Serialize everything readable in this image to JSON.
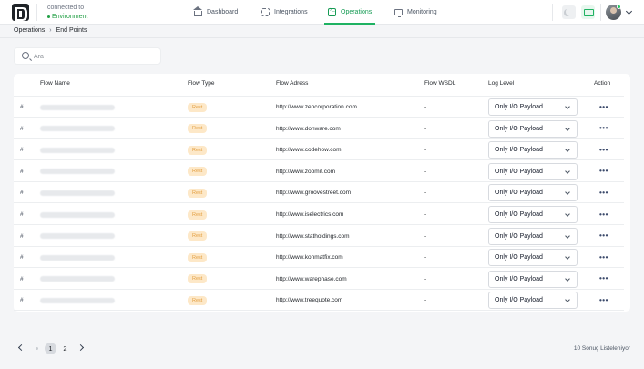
{
  "header": {
    "connection_label": "connected to",
    "environment": "Environment",
    "nav": [
      {
        "label": "Dashboard",
        "icon": "home-icon",
        "active": false
      },
      {
        "label": "Integrations",
        "icon": "integrations-icon",
        "active": false
      },
      {
        "label": "Operations",
        "icon": "terminal-icon",
        "active": true
      },
      {
        "label": "Monitoring",
        "icon": "monitor-icon",
        "active": false
      }
    ],
    "accent_color": "#1fb262"
  },
  "breadcrumb": [
    "Operations",
    "End Points"
  ],
  "search": {
    "placeholder": "Ara",
    "value": ""
  },
  "table": {
    "columns": [
      "Flow Name",
      "Flow Type",
      "Flow Adress",
      "Flow WSDL",
      "Log Level",
      "Action"
    ],
    "rows": [
      {
        "hash": "#",
        "type": "Rest",
        "address": "http://www.zencorporation.com",
        "wsdl": "-",
        "log_level": "Only I/O Payload"
      },
      {
        "hash": "#",
        "type": "Rest",
        "address": "http://www.donware.com",
        "wsdl": "-",
        "log_level": "Only I/O Payload"
      },
      {
        "hash": "#",
        "type": "Rest",
        "address": "http://www.codehow.com",
        "wsdl": "-",
        "log_level": "Only I/O Payload"
      },
      {
        "hash": "#",
        "type": "Rest",
        "address": "http://www.zoomit.com",
        "wsdl": "-",
        "log_level": "Only I/O Payload"
      },
      {
        "hash": "#",
        "type": "Rest",
        "address": "http://www.groovestreet.com",
        "wsdl": "-",
        "log_level": "Only I/O Payload"
      },
      {
        "hash": "#",
        "type": "Rest",
        "address": "http://www.iselectrics.com",
        "wsdl": "-",
        "log_level": "Only I/O Payload"
      },
      {
        "hash": "#",
        "type": "Rest",
        "address": "http://www.statholdings.com",
        "wsdl": "-",
        "log_level": "Only I/O Payload"
      },
      {
        "hash": "#",
        "type": "Rest",
        "address": "http://www.konmatfix.com",
        "wsdl": "-",
        "log_level": "Only I/O Payload"
      },
      {
        "hash": "#",
        "type": "Rest",
        "address": "http://www.warephase.com",
        "wsdl": "-",
        "log_level": "Only I/O Payload"
      },
      {
        "hash": "#",
        "type": "Rest",
        "address": "http://www.treequote.com",
        "wsdl": "-",
        "log_level": "Only I/O Payload"
      }
    ],
    "action_label": "•••"
  },
  "pagination": {
    "pages": [
      "1",
      "2"
    ],
    "current": "1",
    "result_text": "10 Sonuç Listeleniyor"
  }
}
